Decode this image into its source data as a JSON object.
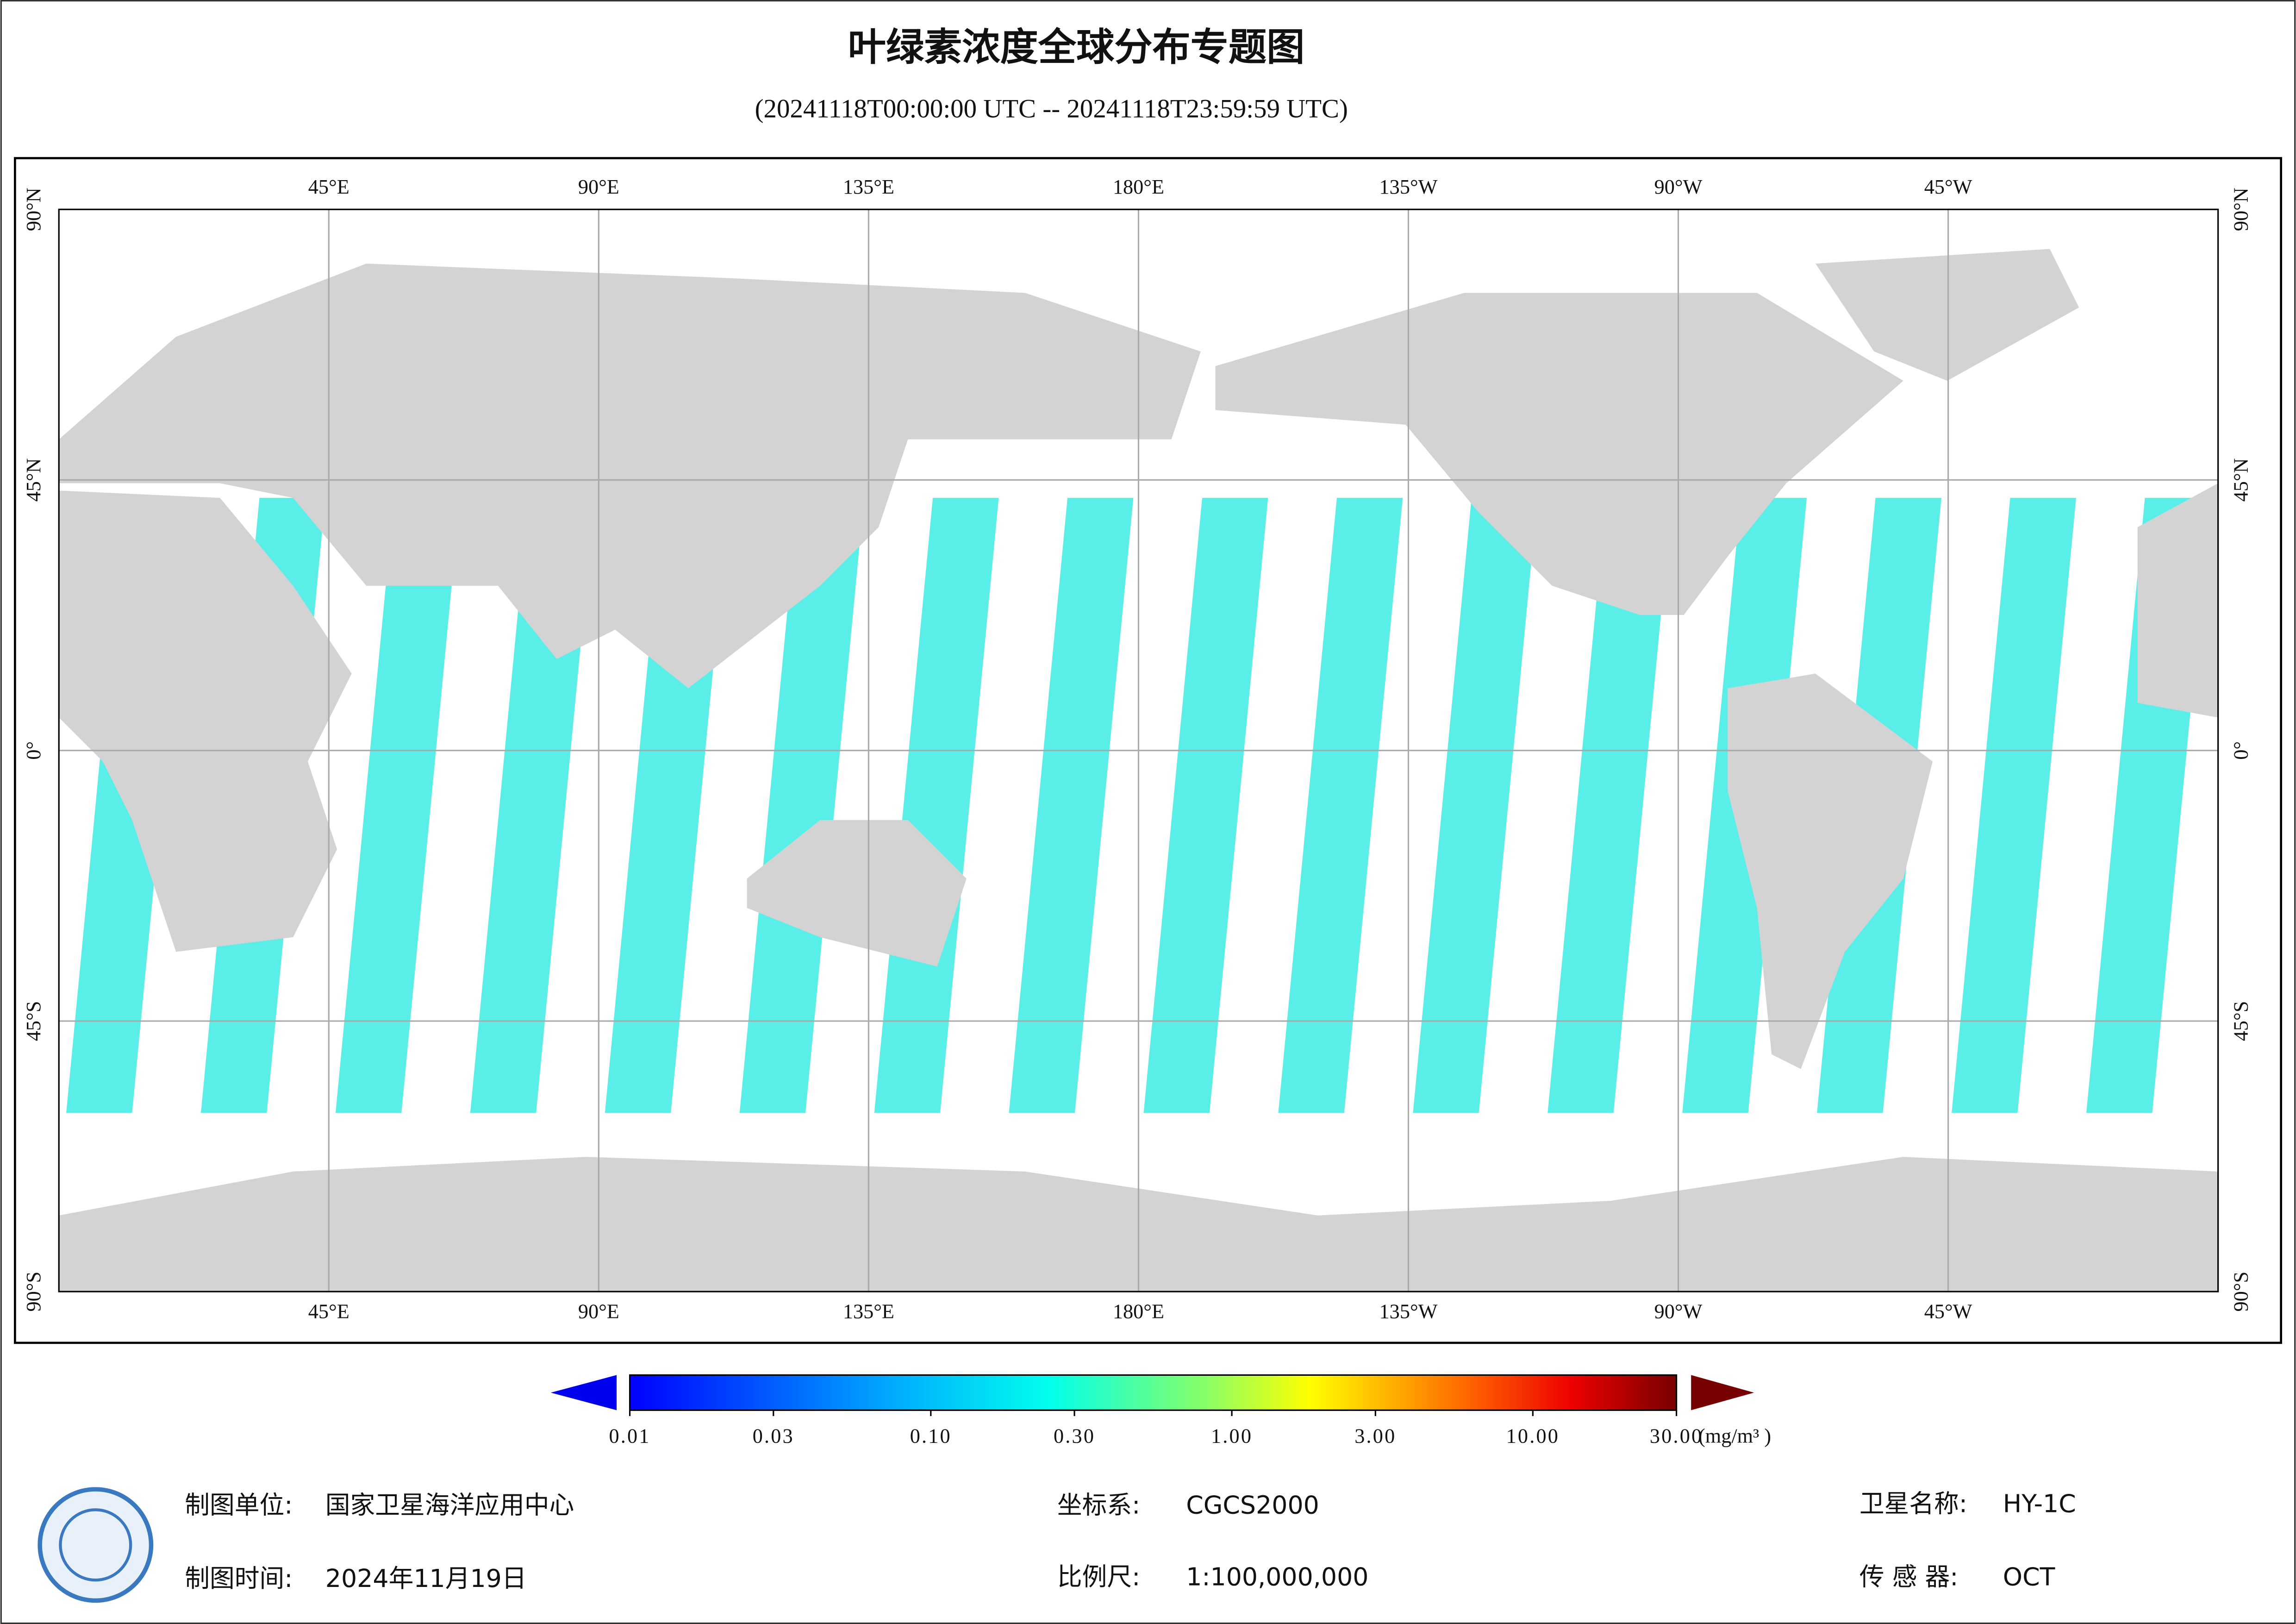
{
  "header": {
    "title": "叶绿素浓度全球分布专题图",
    "subtitle": "(20241118T00:00:00 UTC -- 20241118T23:59:59 UTC)"
  },
  "map": {
    "lon_labels": [
      {
        "value": 45,
        "label": "45°E"
      },
      {
        "value": 90,
        "label": "90°E"
      },
      {
        "value": 135,
        "label": "135°E"
      },
      {
        "value": 180,
        "label": "180°E"
      },
      {
        "value": 225,
        "label": "135°W"
      },
      {
        "value": 270,
        "label": "90°W"
      },
      {
        "value": 315,
        "label": "45°W"
      }
    ],
    "lat_labels": [
      {
        "value": 90,
        "label": "90°N"
      },
      {
        "value": 45,
        "label": "45°N"
      },
      {
        "value": 0,
        "label": "0°"
      },
      {
        "value": -45,
        "label": "45°S"
      },
      {
        "value": -90,
        "label": "90°S"
      }
    ]
  },
  "colorbar": {
    "scale": "log",
    "range": [
      0.01,
      30
    ],
    "ticks": [
      {
        "value": 0.01,
        "label": "0.01"
      },
      {
        "value": 0.03,
        "label": "0.03"
      },
      {
        "value": 0.1,
        "label": "0.10"
      },
      {
        "value": 0.3,
        "label": "0.30"
      },
      {
        "value": 1,
        "label": "1.00"
      },
      {
        "value": 3,
        "label": "3.00"
      },
      {
        "value": 10,
        "label": "10.00"
      },
      {
        "value": 30,
        "label": "30.00"
      }
    ],
    "unit": "(mg/m³ )"
  },
  "footer": {
    "unit_label": "制图单位:",
    "unit": "国家卫星海洋应用中心",
    "date_label": "制图时间:",
    "date": "2024年11月19日",
    "crs_label": "坐标系:",
    "crs": "CGCS2000",
    "scale_label": "比例尺:",
    "scale": "1:100,000,000",
    "satellite_label": "卫星名称:",
    "satellite": "HY-1C",
    "sensor_label": "传 感 器:",
    "sensor": "OCT"
  }
}
